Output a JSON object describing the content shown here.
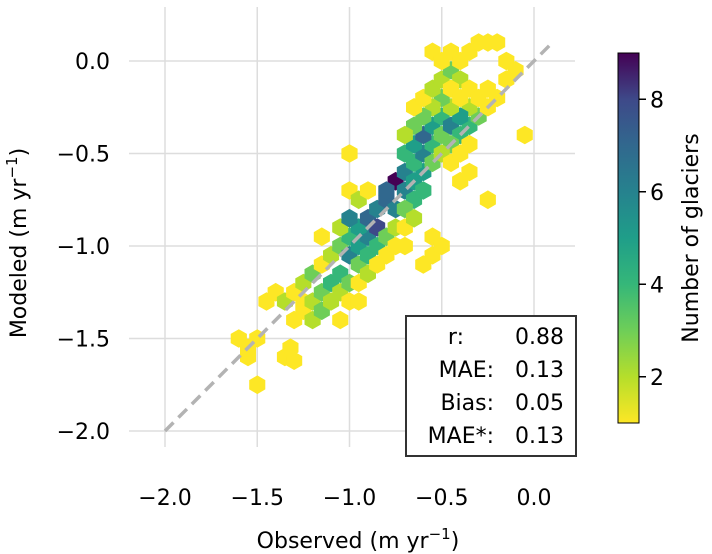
{
  "chart_data": {
    "type": "hexbin",
    "xlabel": "Observed (m yr",
    "ylabel": "Modeled (m yr",
    "unit_exponent": "−1",
    "xlim": [
      -2.3,
      0.3
    ],
    "ylim": [
      -2.2,
      0.2
    ],
    "xticks": [
      -2.0,
      -1.5,
      -1.0,
      -0.5,
      0.0
    ],
    "xtick_labels": [
      "−2.0",
      "−1.5",
      "−1.0",
      "−0.5",
      "0.0"
    ],
    "yticks": [
      0.0,
      -0.5,
      -1.0,
      -1.5,
      -2.0
    ],
    "ytick_labels": [
      "0.0",
      "−0.5",
      "−1.0",
      "−1.5",
      "−2.0"
    ],
    "grid": true,
    "reference_line": {
      "x": [
        -2.0,
        0.1
      ],
      "y": [
        -2.0,
        0.1
      ],
      "style": "dashed",
      "color": "#b3b3b3"
    },
    "colorbar": {
      "label": "Number of glaciers",
      "range": [
        1,
        9
      ],
      "ticks": [
        2,
        4,
        6,
        8
      ],
      "tick_labels": [
        "2",
        "4",
        "6",
        "8"
      ],
      "colormap": "viridis"
    },
    "stats": [
      {
        "label": "r:",
        "value": "0.88"
      },
      {
        "label": "MAE:",
        "value": "0.13"
      },
      {
        "label": "Bias:",
        "value": "0.05"
      },
      {
        "label": "MAE*:",
        "value": "0.13"
      }
    ],
    "hexbins": [
      {
        "x": -1.5,
        "y": -1.5,
        "c": 1
      },
      {
        "x": -1.6,
        "y": -1.5,
        "c": 1
      },
      {
        "x": -1.55,
        "y": -1.6,
        "c": 1
      },
      {
        "x": -1.5,
        "y": -1.75,
        "c": 1
      },
      {
        "x": -1.55,
        "y": -1.55,
        "c": 1
      },
      {
        "x": -1.35,
        "y": -1.6,
        "c": 1
      },
      {
        "x": -1.3,
        "y": -1.62,
        "c": 1
      },
      {
        "x": -1.32,
        "y": -1.55,
        "c": 1
      },
      {
        "x": -1.45,
        "y": -1.3,
        "c": 1
      },
      {
        "x": -1.4,
        "y": -1.25,
        "c": 1
      },
      {
        "x": -1.35,
        "y": -1.3,
        "c": 2
      },
      {
        "x": -1.3,
        "y": -1.25,
        "c": 1
      },
      {
        "x": -1.25,
        "y": -1.3,
        "c": 1
      },
      {
        "x": -1.3,
        "y": -1.4,
        "c": 1
      },
      {
        "x": -1.25,
        "y": -1.35,
        "c": 1
      },
      {
        "x": -1.2,
        "y": -1.3,
        "c": 2
      },
      {
        "x": -1.2,
        "y": -1.4,
        "c": 2
      },
      {
        "x": -1.15,
        "y": -1.35,
        "c": 3
      },
      {
        "x": -1.25,
        "y": -1.2,
        "c": 2
      },
      {
        "x": -1.2,
        "y": -1.15,
        "c": 3
      },
      {
        "x": -1.15,
        "y": -1.25,
        "c": 3
      },
      {
        "x": -1.15,
        "y": -1.1,
        "c": 1
      },
      {
        "x": -1.1,
        "y": -1.2,
        "c": 4
      },
      {
        "x": -1.1,
        "y": -1.3,
        "c": 2
      },
      {
        "x": -1.05,
        "y": -1.25,
        "c": 2
      },
      {
        "x": -1.05,
        "y": -1.15,
        "c": 4
      },
      {
        "x": -1.0,
        "y": -1.2,
        "c": 3
      },
      {
        "x": -1.05,
        "y": -1.4,
        "c": 1
      },
      {
        "x": -1.0,
        "y": -1.3,
        "c": 1
      },
      {
        "x": -0.95,
        "y": -1.3,
        "c": 1
      },
      {
        "x": -1.1,
        "y": -1.05,
        "c": 2
      },
      {
        "x": -1.05,
        "y": -1.0,
        "c": 3
      },
      {
        "x": -1.0,
        "y": -1.05,
        "c": 6
      },
      {
        "x": -1.0,
        "y": -0.95,
        "c": 4
      },
      {
        "x": -1.05,
        "y": -0.9,
        "c": 2
      },
      {
        "x": -0.95,
        "y": -1.0,
        "c": 5
      },
      {
        "x": -0.95,
        "y": -1.1,
        "c": 3
      },
      {
        "x": -0.9,
        "y": -1.05,
        "c": 4
      },
      {
        "x": -0.9,
        "y": -0.95,
        "c": 6
      },
      {
        "x": -0.95,
        "y": -0.9,
        "c": 5
      },
      {
        "x": -1.0,
        "y": -0.85,
        "c": 6
      },
      {
        "x": -0.9,
        "y": -0.85,
        "c": 7
      },
      {
        "x": -0.85,
        "y": -0.9,
        "c": 8
      },
      {
        "x": -0.85,
        "y": -1.0,
        "c": 4
      },
      {
        "x": -0.8,
        "y": -0.95,
        "c": 3
      },
      {
        "x": -0.85,
        "y": -0.8,
        "c": 6
      },
      {
        "x": -0.8,
        "y": -0.75,
        "c": 7
      },
      {
        "x": -0.75,
        "y": -0.8,
        "c": 6
      },
      {
        "x": -0.75,
        "y": -0.65,
        "c": 9
      },
      {
        "x": -0.8,
        "y": -0.7,
        "c": 7
      },
      {
        "x": -0.7,
        "y": -0.7,
        "c": 6
      },
      {
        "x": -0.7,
        "y": -0.6,
        "c": 6
      },
      {
        "x": -0.65,
        "y": -0.65,
        "c": 5
      },
      {
        "x": -0.65,
        "y": -0.75,
        "c": 4
      },
      {
        "x": -0.7,
        "y": -0.8,
        "c": 3
      },
      {
        "x": -0.75,
        "y": -0.9,
        "c": 2
      },
      {
        "x": -0.8,
        "y": -1.05,
        "c": 1
      },
      {
        "x": -0.75,
        "y": -1.0,
        "c": 1
      },
      {
        "x": -0.7,
        "y": -0.9,
        "c": 1
      },
      {
        "x": -0.65,
        "y": -0.85,
        "c": 2
      },
      {
        "x": -0.6,
        "y": -0.7,
        "c": 4
      },
      {
        "x": -0.6,
        "y": -0.6,
        "c": 5
      },
      {
        "x": -0.65,
        "y": -0.55,
        "c": 4
      },
      {
        "x": -0.7,
        "y": -0.5,
        "c": 4
      },
      {
        "x": -0.6,
        "y": -0.5,
        "c": 6
      },
      {
        "x": -0.55,
        "y": -0.55,
        "c": 3
      },
      {
        "x": -0.55,
        "y": -0.45,
        "c": 4
      },
      {
        "x": -0.65,
        "y": -0.45,
        "c": 5
      },
      {
        "x": -0.6,
        "y": -0.4,
        "c": 7
      },
      {
        "x": -0.55,
        "y": -0.35,
        "c": 5
      },
      {
        "x": -0.5,
        "y": -0.4,
        "c": 3
      },
      {
        "x": -0.5,
        "y": -0.3,
        "c": 4
      },
      {
        "x": -0.45,
        "y": -0.35,
        "c": 6
      },
      {
        "x": -0.4,
        "y": -0.4,
        "c": 4
      },
      {
        "x": -0.45,
        "y": -0.45,
        "c": 3
      },
      {
        "x": -0.5,
        "y": -0.5,
        "c": 2
      },
      {
        "x": -0.45,
        "y": -0.55,
        "c": 1
      },
      {
        "x": -0.4,
        "y": -0.5,
        "c": 1
      },
      {
        "x": -0.35,
        "y": -0.45,
        "c": 1
      },
      {
        "x": -0.35,
        "y": -0.35,
        "c": 4
      },
      {
        "x": -0.3,
        "y": -0.3,
        "c": 3
      },
      {
        "x": -0.35,
        "y": -0.25,
        "c": 2
      },
      {
        "x": -0.4,
        "y": -0.3,
        "c": 5
      },
      {
        "x": -0.45,
        "y": -0.25,
        "c": 2
      },
      {
        "x": -0.5,
        "y": -0.2,
        "c": 3
      },
      {
        "x": -0.55,
        "y": -0.25,
        "c": 2
      },
      {
        "x": -0.6,
        "y": -0.3,
        "c": 3
      },
      {
        "x": -0.65,
        "y": -0.35,
        "c": 3
      },
      {
        "x": -0.7,
        "y": -0.4,
        "c": 2
      },
      {
        "x": -0.65,
        "y": -0.25,
        "c": 1
      },
      {
        "x": -0.6,
        "y": -0.2,
        "c": 1
      },
      {
        "x": -0.55,
        "y": -0.15,
        "c": 2
      },
      {
        "x": -0.5,
        "y": -0.1,
        "c": 2
      },
      {
        "x": -0.45,
        "y": -0.05,
        "c": 3
      },
      {
        "x": -0.4,
        "y": -0.1,
        "c": 2
      },
      {
        "x": -0.45,
        "y": -0.15,
        "c": 1
      },
      {
        "x": -0.4,
        "y": -0.2,
        "c": 1
      },
      {
        "x": -0.35,
        "y": -0.15,
        "c": 1
      },
      {
        "x": -0.3,
        "y": -0.2,
        "c": 1
      },
      {
        "x": -0.25,
        "y": -0.25,
        "c": 1
      },
      {
        "x": -0.2,
        "y": -0.2,
        "c": 1
      },
      {
        "x": -0.25,
        "y": -0.15,
        "c": 1
      },
      {
        "x": -0.55,
        "y": 0.05,
        "c": 1
      },
      {
        "x": -0.5,
        "y": 0.0,
        "c": 1
      },
      {
        "x": -0.45,
        "y": 0.05,
        "c": 1
      },
      {
        "x": -0.4,
        "y": 0.0,
        "c": 1
      },
      {
        "x": -0.35,
        "y": 0.05,
        "c": 1
      },
      {
        "x": -0.3,
        "y": 0.1,
        "c": 1
      },
      {
        "x": -0.25,
        "y": 0.1,
        "c": 1
      },
      {
        "x": -0.2,
        "y": 0.1,
        "c": 1
      },
      {
        "x": -0.15,
        "y": 0.0,
        "c": 1
      },
      {
        "x": -0.1,
        "y": -0.05,
        "c": 1
      },
      {
        "x": -0.15,
        "y": -0.1,
        "c": 1
      },
      {
        "x": -0.05,
        "y": -0.4,
        "c": 1
      },
      {
        "x": -0.25,
        "y": -0.75,
        "c": 1
      },
      {
        "x": -0.35,
        "y": -0.6,
        "c": 1
      },
      {
        "x": -0.4,
        "y": -0.65,
        "c": 1
      },
      {
        "x": -1.0,
        "y": -0.5,
        "c": 1
      },
      {
        "x": -1.0,
        "y": -0.7,
        "c": 1
      },
      {
        "x": -0.95,
        "y": -0.75,
        "c": 2
      },
      {
        "x": -0.9,
        "y": -0.7,
        "c": 1
      },
      {
        "x": -0.55,
        "y": -0.95,
        "c": 1
      },
      {
        "x": -0.55,
        "y": -1.05,
        "c": 1
      },
      {
        "x": -0.5,
        "y": -1.0,
        "c": 1
      },
      {
        "x": -0.6,
        "y": -1.1,
        "c": 1
      },
      {
        "x": -0.7,
        "y": -1.0,
        "c": 1
      },
      {
        "x": -1.15,
        "y": -0.95,
        "c": 1
      },
      {
        "x": -0.95,
        "y": -1.2,
        "c": 1
      },
      {
        "x": -0.9,
        "y": -1.15,
        "c": 2
      },
      {
        "x": -0.85,
        "y": -1.1,
        "c": 1
      }
    ]
  }
}
